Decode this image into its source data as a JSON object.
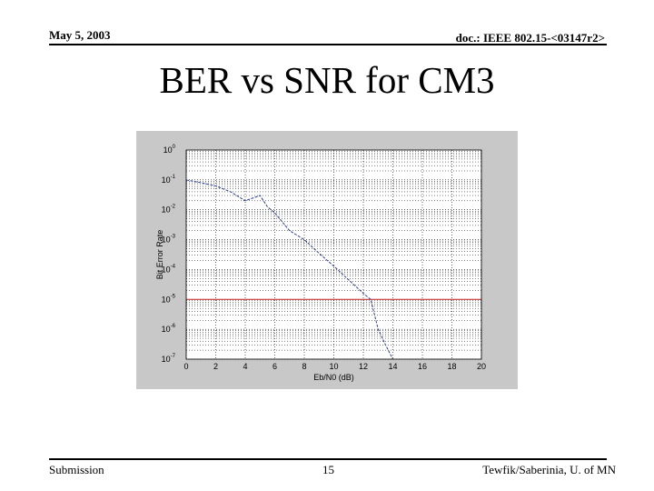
{
  "header": {
    "date": "May 5, 2003",
    "doc_id": "doc.: IEEE 802.15-<03147r2>"
  },
  "slide": {
    "title": "BER vs SNR for CM3"
  },
  "footer": {
    "left": "Submission",
    "page_number": "15",
    "right": "Tewfik/Saberinia, U. of MN"
  },
  "colors": {
    "figure_background": "#c8c8c8",
    "plot_background": "#ffffff",
    "curve": "#2f3f8f",
    "reference_line": "#c02020"
  },
  "chart_data": {
    "type": "line",
    "title": "",
    "xlabel": "Eb/N0 (dB)",
    "ylabel": "Bit Error Rate",
    "yscale": "log",
    "xlim": [
      0,
      20
    ],
    "ylim": [
      1e-07,
      1
    ],
    "x_ticks": [
      "0",
      "2",
      "4",
      "6",
      "8",
      "10",
      "12",
      "14",
      "16",
      "18",
      "20"
    ],
    "y_ticks": [
      {
        "base": "10",
        "exp": "0"
      },
      {
        "base": "10",
        "exp": "-1"
      },
      {
        "base": "10",
        "exp": "-2"
      },
      {
        "base": "10",
        "exp": "-3"
      },
      {
        "base": "10",
        "exp": "-4"
      },
      {
        "base": "10",
        "exp": "-5"
      },
      {
        "base": "10",
        "exp": "-6"
      },
      {
        "base": "10",
        "exp": "-7"
      }
    ],
    "grid": true,
    "series": [
      {
        "color": "#2f3f8f",
        "x": [
          0,
          1,
          2,
          3,
          4,
          5,
          5.5,
          6,
          7,
          8,
          9,
          10,
          11,
          12,
          12.5,
          13,
          13.5,
          14
        ],
        "y": [
          0.1,
          0.08,
          0.063,
          0.04,
          0.02,
          0.03,
          0.0126,
          0.0079,
          0.002,
          0.001,
          0.00035,
          0.00013,
          4.5e-05,
          1.6e-05,
          1e-05,
          1e-06,
          3e-07,
          1e-07
        ]
      }
    ],
    "reference_line": {
      "y": 1e-05,
      "color": "#c02020"
    }
  }
}
